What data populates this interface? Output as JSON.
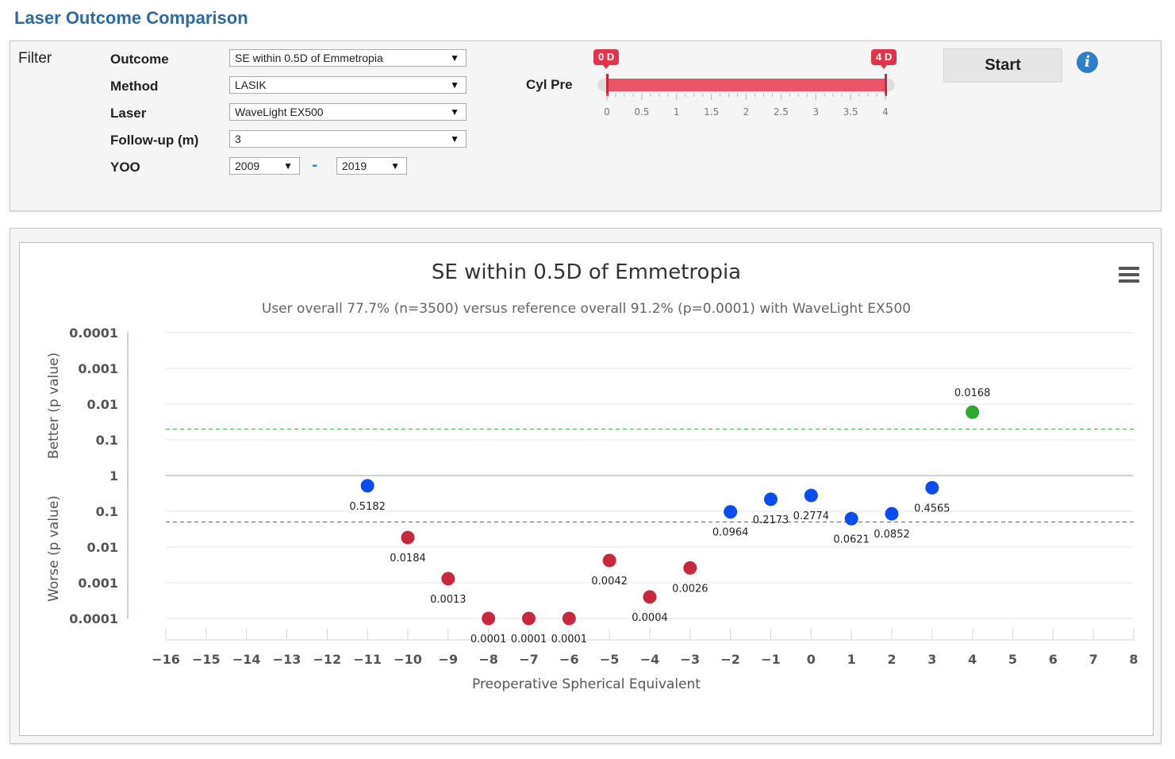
{
  "header": {
    "title": "Laser Outcome Comparison"
  },
  "filter": {
    "title": "Filter",
    "outcome": {
      "label": "Outcome",
      "value": "SE within 0.5D of Emmetropia"
    },
    "method": {
      "label": "Method",
      "value": "LASIK"
    },
    "laser": {
      "label": "Laser",
      "value": "WaveLight EX500"
    },
    "followup": {
      "label": "Follow-up (m)",
      "value": "3"
    },
    "yoo": {
      "label": "YOO",
      "from": "2009",
      "separator": "-",
      "to": "2019"
    },
    "cyl": {
      "label": "Cyl Pre",
      "min_badge": "0 D",
      "max_badge": "4 D",
      "range_min": 0,
      "range_max": 4,
      "selected_min": 0,
      "selected_max": 4,
      "tick_labels": [
        "0",
        "0.5",
        "1",
        "1.5",
        "2",
        "2.5",
        "3",
        "3.5",
        "4"
      ]
    },
    "start_label": "Start",
    "info_icon": "info-icon",
    "dropdown_icon": "▼"
  },
  "chart_data": {
    "type": "scatter",
    "title": "SE within 0.5D of Emmetropia",
    "subtitle": "User overall 77.7% (n=3500) versus reference overall 91.2% (p=0.0001) with WaveLight EX500",
    "xlabel": "Preoperative Spherical Equivalent",
    "ylabel_better": "Better (p value)",
    "ylabel_worse": "Worse (p value)",
    "xlim": [
      -16,
      8
    ],
    "x_ticks": [
      "−16",
      "−15",
      "−14",
      "−13",
      "−12",
      "−11",
      "−10",
      "−9",
      "−8",
      "−7",
      "−6",
      "−5",
      "−4",
      "−3",
      "−2",
      "−1",
      "0",
      "1",
      "2",
      "3",
      "4",
      "5",
      "6",
      "7",
      "8"
    ],
    "y_tick_labels": [
      "0.0001",
      "0.001",
      "0.01",
      "0.1",
      "1",
      "0.1",
      "0.01",
      "0.001",
      "0.0001"
    ],
    "threshold_better_p": 0.05,
    "threshold_worse_p": 0.05,
    "colors": {
      "better": "#2eaa2e",
      "worse": "#c8283d",
      "neutral": "#0a4cf0",
      "better_line": "#4cb050",
      "worse_line": "#a8475a"
    },
    "points": [
      {
        "x": -11,
        "p": 0.5182,
        "label": "0.5182",
        "status": "neutral"
      },
      {
        "x": -10,
        "p": 0.0184,
        "label": "0.0184",
        "status": "worse"
      },
      {
        "x": -9,
        "p": 0.0013,
        "label": "0.0013",
        "status": "worse"
      },
      {
        "x": -8,
        "p": 0.0001,
        "label": "0.0001",
        "status": "worse"
      },
      {
        "x": -7,
        "p": 0.0001,
        "label": "0.0001",
        "status": "worse"
      },
      {
        "x": -6,
        "p": 0.0001,
        "label": "0.0001",
        "status": "worse"
      },
      {
        "x": -5,
        "p": 0.0042,
        "label": "0.0042",
        "status": "worse"
      },
      {
        "x": -4,
        "p": 0.0004,
        "label": "0.0004",
        "status": "worse"
      },
      {
        "x": -3,
        "p": 0.0026,
        "label": "0.0026",
        "status": "worse"
      },
      {
        "x": -2,
        "p": 0.0964,
        "label": "0.0964",
        "status": "neutral"
      },
      {
        "x": -1,
        "p": 0.2173,
        "label": "0.2173",
        "status": "neutral"
      },
      {
        "x": 0,
        "p": 0.2774,
        "label": "0.2774",
        "status": "neutral"
      },
      {
        "x": 1,
        "p": 0.0621,
        "label": "0.0621",
        "status": "neutral"
      },
      {
        "x": 2,
        "p": 0.0852,
        "label": "0.0852",
        "status": "neutral"
      },
      {
        "x": 3,
        "p": 0.4565,
        "label": "0.4565",
        "status": "neutral"
      },
      {
        "x": 4,
        "p": 0.0168,
        "label": "0.0168",
        "status": "better"
      }
    ],
    "menu_icon": "hamburger-menu-icon"
  }
}
